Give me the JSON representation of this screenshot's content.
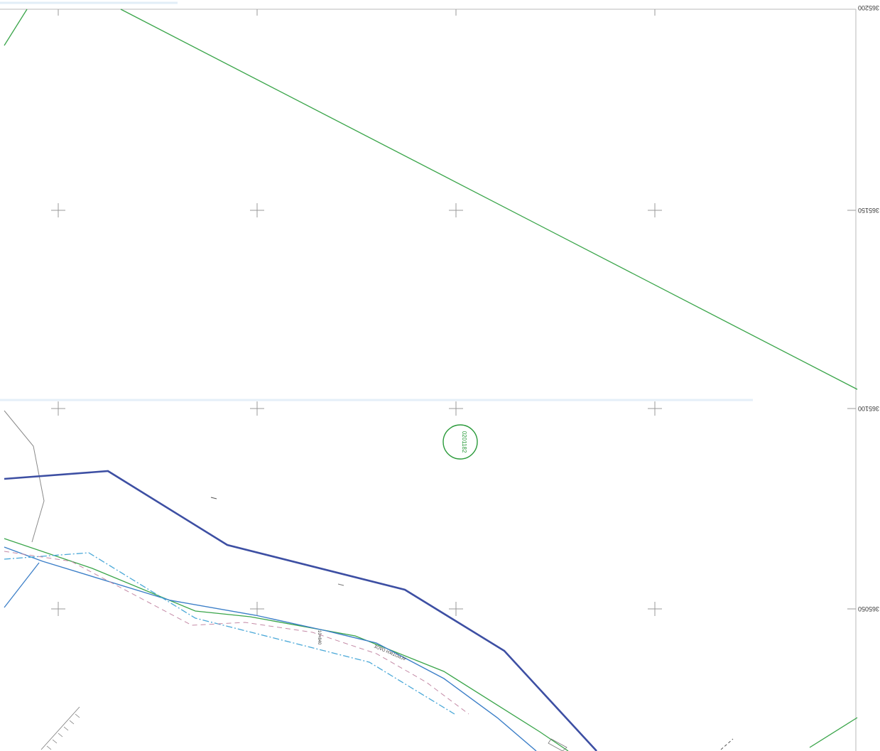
{
  "map": {
    "coordinate_labels": {
      "top": "365200",
      "upper": "365150",
      "middle": "365100",
      "lower": "365050"
    },
    "parcel_id": "0201182",
    "road_label": "ΑΓΡΟΤΙΚΗ ΟΔΟΣ",
    "small_label": "10+840",
    "colors": {
      "boundary_green": "#3aa54a",
      "road_blue": "#3d4fa3",
      "stream_blue": "#3c7fc8",
      "dash_cyan": "#4aa8d8",
      "dash_pink": "#c48aa6",
      "grid": "#9a9a9a",
      "parcel_circle": "#2a9a3a"
    }
  }
}
